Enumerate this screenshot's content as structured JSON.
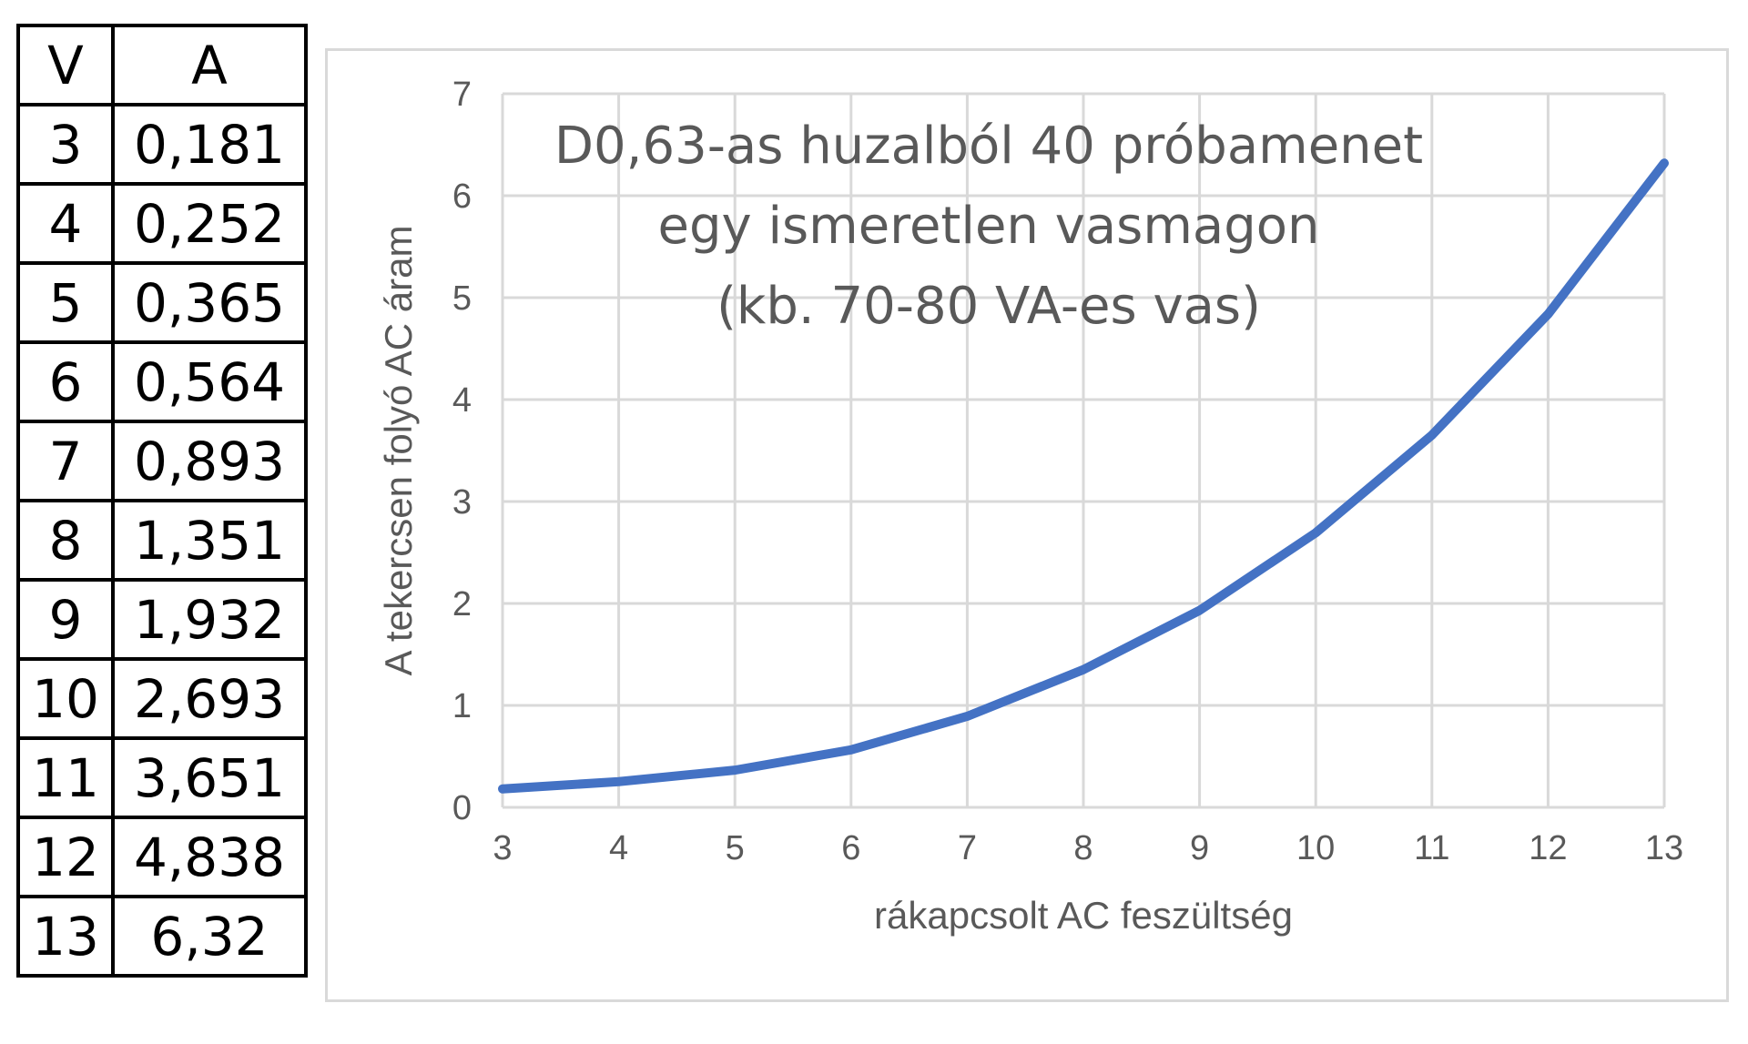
{
  "table": {
    "headers": [
      "V",
      "A"
    ],
    "rows": [
      [
        "3",
        "0,181"
      ],
      [
        "4",
        "0,252"
      ],
      [
        "5",
        "0,365"
      ],
      [
        "6",
        "0,564"
      ],
      [
        "7",
        "0,893"
      ],
      [
        "8",
        "1,351"
      ],
      [
        "9",
        "1,932"
      ],
      [
        "10",
        "2,693"
      ],
      [
        "11",
        "3,651"
      ],
      [
        "12",
        "4,838"
      ],
      [
        "13",
        "6,32"
      ]
    ]
  },
  "chart_data": {
    "type": "line",
    "title_lines": [
      "D0,63-as huzalból 40 próbamenet",
      "egy ismeretlen vasmagon",
      "(kb. 70-80 VA-es vas)"
    ],
    "xlabel": "rákapcsolt AC feszültség",
    "ylabel": "A tekercsen folyó AC áram",
    "x": [
      3,
      4,
      5,
      6,
      7,
      8,
      9,
      10,
      11,
      12,
      13
    ],
    "series": [
      {
        "values": [
          0.181,
          0.252,
          0.365,
          0.564,
          0.893,
          1.351,
          1.932,
          2.693,
          3.651,
          4.838,
          6.32
        ]
      }
    ],
    "xlim": [
      3,
      13
    ],
    "ylim": [
      0,
      7
    ],
    "xticks": [
      "3",
      "4",
      "5",
      "6",
      "7",
      "8",
      "9",
      "10",
      "11",
      "12",
      "13"
    ],
    "yticks": [
      "0",
      "1",
      "2",
      "3",
      "4",
      "5",
      "6",
      "7"
    ],
    "grid": true,
    "legend": "none",
    "colors": {
      "line": "#4472c4",
      "grid": "#d9d9d9",
      "text": "#595959"
    }
  }
}
